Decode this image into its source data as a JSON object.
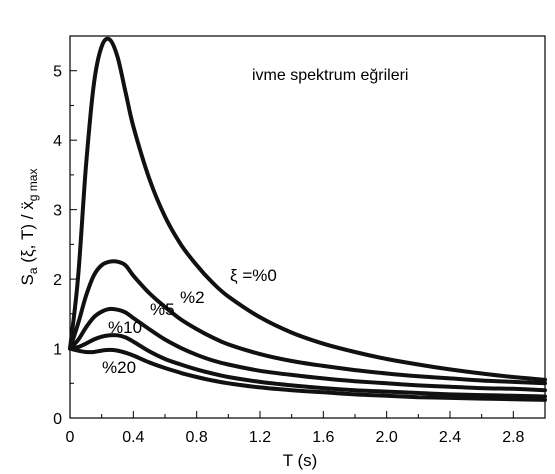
{
  "chart_data": {
    "type": "line",
    "title": "ivme spektrum eğrileri",
    "xlabel": "T (s)",
    "ylabel_parts": {
      "s": "S",
      "a": "a",
      "mid": " (ξ, T) / ẍ",
      "g": "g",
      "max": " max"
    },
    "xlim": [
      0,
      3.0
    ],
    "ylim": [
      0,
      5.5
    ],
    "xticks": [
      "0",
      "0.4",
      "0.8",
      "1.2",
      "1.6",
      "2.0",
      "2.4",
      "2.8"
    ],
    "yticks": [
      "0",
      "1",
      "2",
      "3",
      "4",
      "5"
    ],
    "xtick_values": [
      0,
      0.4,
      0.8,
      1.2,
      1.6,
      2.0,
      2.4,
      2.8
    ],
    "ytick_values": [
      0,
      1,
      2,
      3,
      4,
      5
    ],
    "grid": false,
    "line_color": "#111111",
    "series": [
      {
        "label": "ξ =%0",
        "x": [
          0,
          0.05,
          0.1,
          0.15,
          0.2,
          0.25,
          0.3,
          0.35,
          0.4,
          0.5,
          0.6,
          0.7,
          0.8,
          0.9,
          1.0,
          1.2,
          1.4,
          1.6,
          1.8,
          2.0,
          2.2,
          2.4,
          2.6,
          2.8,
          3.0
        ],
        "y": [
          1.0,
          2.0,
          3.6,
          4.8,
          5.35,
          5.45,
          5.2,
          4.7,
          4.2,
          3.45,
          2.9,
          2.5,
          2.2,
          1.95,
          1.75,
          1.45,
          1.23,
          1.07,
          0.95,
          0.85,
          0.77,
          0.7,
          0.64,
          0.59,
          0.55
        ]
      },
      {
        "label": "%2",
        "x": [
          0,
          0.05,
          0.1,
          0.15,
          0.2,
          0.25,
          0.3,
          0.35,
          0.4,
          0.5,
          0.6,
          0.7,
          0.8,
          0.9,
          1.0,
          1.2,
          1.4,
          1.6,
          1.8,
          2.0,
          2.2,
          2.4,
          2.6,
          2.8,
          3.0
        ],
        "y": [
          1.0,
          1.35,
          1.75,
          2.05,
          2.2,
          2.25,
          2.25,
          2.2,
          2.05,
          1.8,
          1.6,
          1.42,
          1.28,
          1.16,
          1.06,
          0.92,
          0.82,
          0.75,
          0.69,
          0.64,
          0.6,
          0.57,
          0.54,
          0.52,
          0.5
        ]
      },
      {
        "label": "%5",
        "x": [
          0,
          0.05,
          0.1,
          0.15,
          0.2,
          0.25,
          0.3,
          0.35,
          0.4,
          0.5,
          0.6,
          0.7,
          0.8,
          0.9,
          1.0,
          1.2,
          1.4,
          1.6,
          1.8,
          2.0,
          2.2,
          2.4,
          2.6,
          2.8,
          3.0
        ],
        "y": [
          1.0,
          1.12,
          1.3,
          1.45,
          1.53,
          1.57,
          1.56,
          1.52,
          1.44,
          1.28,
          1.13,
          1.01,
          0.91,
          0.83,
          0.77,
          0.68,
          0.62,
          0.57,
          0.53,
          0.5,
          0.47,
          0.45,
          0.43,
          0.42,
          0.4
        ]
      },
      {
        "label": "%10",
        "x": [
          0,
          0.05,
          0.1,
          0.15,
          0.2,
          0.25,
          0.3,
          0.35,
          0.4,
          0.5,
          0.6,
          0.7,
          0.8,
          0.9,
          1.0,
          1.2,
          1.4,
          1.6,
          1.8,
          2.0,
          2.2,
          2.4,
          2.6,
          2.8,
          3.0
        ],
        "y": [
          1.0,
          1.02,
          1.07,
          1.13,
          1.17,
          1.19,
          1.19,
          1.16,
          1.1,
          0.96,
          0.85,
          0.77,
          0.7,
          0.64,
          0.59,
          0.52,
          0.47,
          0.43,
          0.4,
          0.38,
          0.36,
          0.34,
          0.33,
          0.32,
          0.31
        ]
      },
      {
        "label": "%20",
        "x": [
          0,
          0.05,
          0.1,
          0.15,
          0.2,
          0.25,
          0.3,
          0.35,
          0.4,
          0.5,
          0.6,
          0.7,
          0.8,
          0.9,
          1.0,
          1.2,
          1.4,
          1.6,
          1.8,
          2.0,
          2.2,
          2.4,
          2.6,
          2.8,
          3.0
        ],
        "y": [
          1.0,
          0.97,
          0.95,
          0.95,
          0.97,
          0.98,
          0.97,
          0.94,
          0.9,
          0.8,
          0.72,
          0.65,
          0.59,
          0.54,
          0.5,
          0.44,
          0.4,
          0.37,
          0.34,
          0.32,
          0.3,
          0.29,
          0.28,
          0.27,
          0.26
        ]
      }
    ]
  }
}
